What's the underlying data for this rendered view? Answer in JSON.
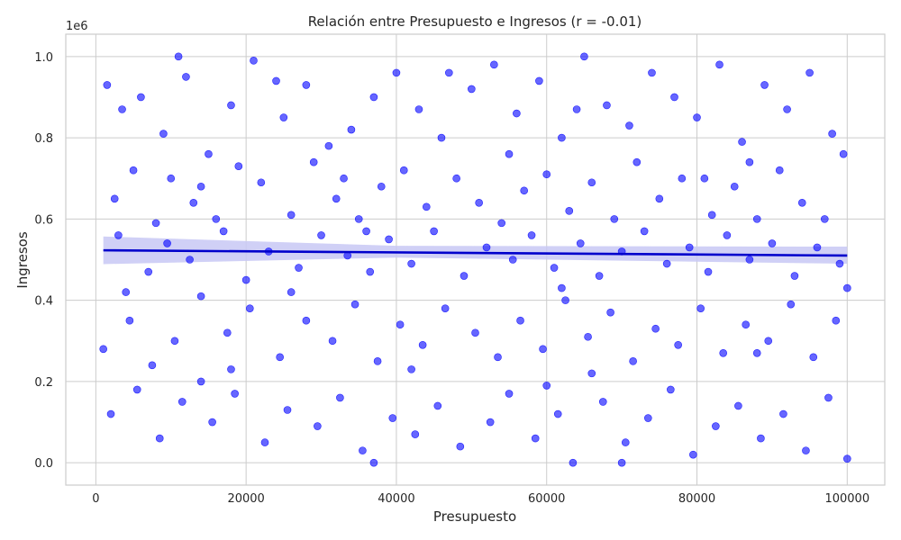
{
  "chart_data": {
    "type": "scatter",
    "title": "Relación entre Presupuesto e Ingresos (r = -0.01)",
    "xlabel": "Presupuesto",
    "ylabel": "Ingresos",
    "y_offset_label": "1e6",
    "xlim": [
      -4000,
      105000
    ],
    "ylim": [
      -55000,
      1055000
    ],
    "x_ticks": [
      0,
      20000,
      40000,
      60000,
      80000,
      100000
    ],
    "x_tick_labels": [
      "0",
      "20000",
      "40000",
      "60000",
      "80000",
      "100000"
    ],
    "y_ticks": [
      0,
      200000,
      400000,
      600000,
      800000,
      1000000
    ],
    "y_tick_labels": [
      "0.0",
      "0.2",
      "0.4",
      "0.6",
      "0.8",
      "1.0"
    ],
    "grid": true,
    "point_color": "#0000ff",
    "point_alpha": 0.6,
    "regression": {
      "x": [
        1000,
        100000
      ],
      "y": [
        523000,
        510000
      ],
      "ci_lower": [
        489000,
        490000
      ],
      "ci_upper": [
        557000,
        532000
      ],
      "ci_mid_x": 40000,
      "ci_mid_lower": 505000,
      "ci_mid_upper": 534000,
      "line_color": "#0000cc",
      "band_color": "#c8c8f5"
    },
    "points": [
      [
        1500,
        930000
      ],
      [
        3500,
        870000
      ],
      [
        6000,
        900000
      ],
      [
        9000,
        810000
      ],
      [
        12000,
        950000
      ],
      [
        15000,
        760000
      ],
      [
        18000,
        880000
      ],
      [
        21000,
        990000
      ],
      [
        25000,
        850000
      ],
      [
        28000,
        930000
      ],
      [
        31000,
        780000
      ],
      [
        34000,
        820000
      ],
      [
        37000,
        900000
      ],
      [
        40000,
        960000
      ],
      [
        43000,
        870000
      ],
      [
        46000,
        800000
      ],
      [
        50000,
        920000
      ],
      [
        53000,
        980000
      ],
      [
        56000,
        860000
      ],
      [
        59000,
        940000
      ],
      [
        62000,
        800000
      ],
      [
        65000,
        1000000
      ],
      [
        68000,
        880000
      ],
      [
        71000,
        830000
      ],
      [
        74000,
        960000
      ],
      [
        77000,
        900000
      ],
      [
        80000,
        850000
      ],
      [
        83000,
        980000
      ],
      [
        86000,
        790000
      ],
      [
        89000,
        930000
      ],
      [
        92000,
        870000
      ],
      [
        95000,
        960000
      ],
      [
        98000,
        810000
      ],
      [
        99500,
        760000
      ],
      [
        11000,
        1000000
      ],
      [
        24000,
        940000
      ],
      [
        47000,
        960000
      ],
      [
        64000,
        870000
      ],
      [
        81000,
        700000
      ],
      [
        33000,
        700000
      ],
      [
        2500,
        650000
      ],
      [
        5000,
        720000
      ],
      [
        8000,
        590000
      ],
      [
        10000,
        700000
      ],
      [
        13000,
        640000
      ],
      [
        16000,
        600000
      ],
      [
        19000,
        730000
      ],
      [
        22000,
        690000
      ],
      [
        26000,
        610000
      ],
      [
        29000,
        740000
      ],
      [
        32000,
        650000
      ],
      [
        35000,
        600000
      ],
      [
        38000,
        680000
      ],
      [
        41000,
        720000
      ],
      [
        44000,
        630000
      ],
      [
        48000,
        700000
      ],
      [
        51000,
        640000
      ],
      [
        54000,
        590000
      ],
      [
        57000,
        670000
      ],
      [
        60000,
        710000
      ],
      [
        63000,
        620000
      ],
      [
        66000,
        690000
      ],
      [
        69000,
        600000
      ],
      [
        72000,
        740000
      ],
      [
        75000,
        650000
      ],
      [
        78000,
        700000
      ],
      [
        82000,
        610000
      ],
      [
        85000,
        680000
      ],
      [
        88000,
        600000
      ],
      [
        91000,
        720000
      ],
      [
        94000,
        640000
      ],
      [
        97000,
        600000
      ],
      [
        36000,
        570000
      ],
      [
        55000,
        760000
      ],
      [
        87000,
        740000
      ],
      [
        14000,
        680000
      ],
      [
        3000,
        560000
      ],
      [
        7000,
        470000
      ],
      [
        9500,
        540000
      ],
      [
        12500,
        500000
      ],
      [
        17000,
        570000
      ],
      [
        20000,
        450000
      ],
      [
        23000,
        520000
      ],
      [
        27000,
        480000
      ],
      [
        30000,
        560000
      ],
      [
        33500,
        510000
      ],
      [
        36500,
        470000
      ],
      [
        39000,
        550000
      ],
      [
        42000,
        490000
      ],
      [
        45000,
        570000
      ],
      [
        49000,
        460000
      ],
      [
        52000,
        530000
      ],
      [
        55500,
        500000
      ],
      [
        58000,
        560000
      ],
      [
        61000,
        480000
      ],
      [
        64500,
        540000
      ],
      [
        67000,
        460000
      ],
      [
        70000,
        520000
      ],
      [
        73000,
        570000
      ],
      [
        76000,
        490000
      ],
      [
        79000,
        530000
      ],
      [
        81500,
        470000
      ],
      [
        84000,
        560000
      ],
      [
        87000,
        500000
      ],
      [
        90000,
        540000
      ],
      [
        93000,
        460000
      ],
      [
        96000,
        530000
      ],
      [
        99000,
        490000
      ],
      [
        100000,
        430000
      ],
      [
        4000,
        420000
      ],
      [
        26000,
        420000
      ],
      [
        62000,
        430000
      ],
      [
        1000,
        280000
      ],
      [
        4500,
        350000
      ],
      [
        7500,
        240000
      ],
      [
        10500,
        300000
      ],
      [
        14000,
        410000
      ],
      [
        17500,
        320000
      ],
      [
        20500,
        380000
      ],
      [
        24500,
        260000
      ],
      [
        28000,
        350000
      ],
      [
        31500,
        300000
      ],
      [
        34500,
        390000
      ],
      [
        37500,
        250000
      ],
      [
        40500,
        340000
      ],
      [
        43500,
        290000
      ],
      [
        46500,
        380000
      ],
      [
        50500,
        320000
      ],
      [
        53500,
        260000
      ],
      [
        56500,
        350000
      ],
      [
        59500,
        280000
      ],
      [
        62500,
        400000
      ],
      [
        65500,
        310000
      ],
      [
        68500,
        370000
      ],
      [
        71500,
        250000
      ],
      [
        74500,
        330000
      ],
      [
        77500,
        290000
      ],
      [
        80500,
        380000
      ],
      [
        83500,
        270000
      ],
      [
        86500,
        340000
      ],
      [
        89500,
        300000
      ],
      [
        92500,
        390000
      ],
      [
        95500,
        260000
      ],
      [
        98500,
        350000
      ],
      [
        42000,
        230000
      ],
      [
        66000,
        220000
      ],
      [
        18000,
        230000
      ],
      [
        88000,
        270000
      ],
      [
        2000,
        120000
      ],
      [
        5500,
        180000
      ],
      [
        8500,
        60000
      ],
      [
        11500,
        150000
      ],
      [
        15500,
        100000
      ],
      [
        18500,
        170000
      ],
      [
        22500,
        50000
      ],
      [
        25500,
        130000
      ],
      [
        29500,
        90000
      ],
      [
        32500,
        160000
      ],
      [
        35500,
        30000
      ],
      [
        39500,
        110000
      ],
      [
        42500,
        70000
      ],
      [
        45500,
        140000
      ],
      [
        48500,
        40000
      ],
      [
        52500,
        100000
      ],
      [
        55000,
        170000
      ],
      [
        58500,
        60000
      ],
      [
        61500,
        120000
      ],
      [
        63500,
        0
      ],
      [
        67500,
        150000
      ],
      [
        70500,
        50000
      ],
      [
        73500,
        110000
      ],
      [
        76500,
        180000
      ],
      [
        79500,
        20000
      ],
      [
        82500,
        90000
      ],
      [
        85500,
        140000
      ],
      [
        88500,
        60000
      ],
      [
        91500,
        120000
      ],
      [
        94500,
        30000
      ],
      [
        97500,
        160000
      ],
      [
        100000,
        10000
      ],
      [
        37000,
        0
      ],
      [
        70000,
        0
      ],
      [
        14000,
        200000
      ],
      [
        60000,
        190000
      ]
    ]
  }
}
